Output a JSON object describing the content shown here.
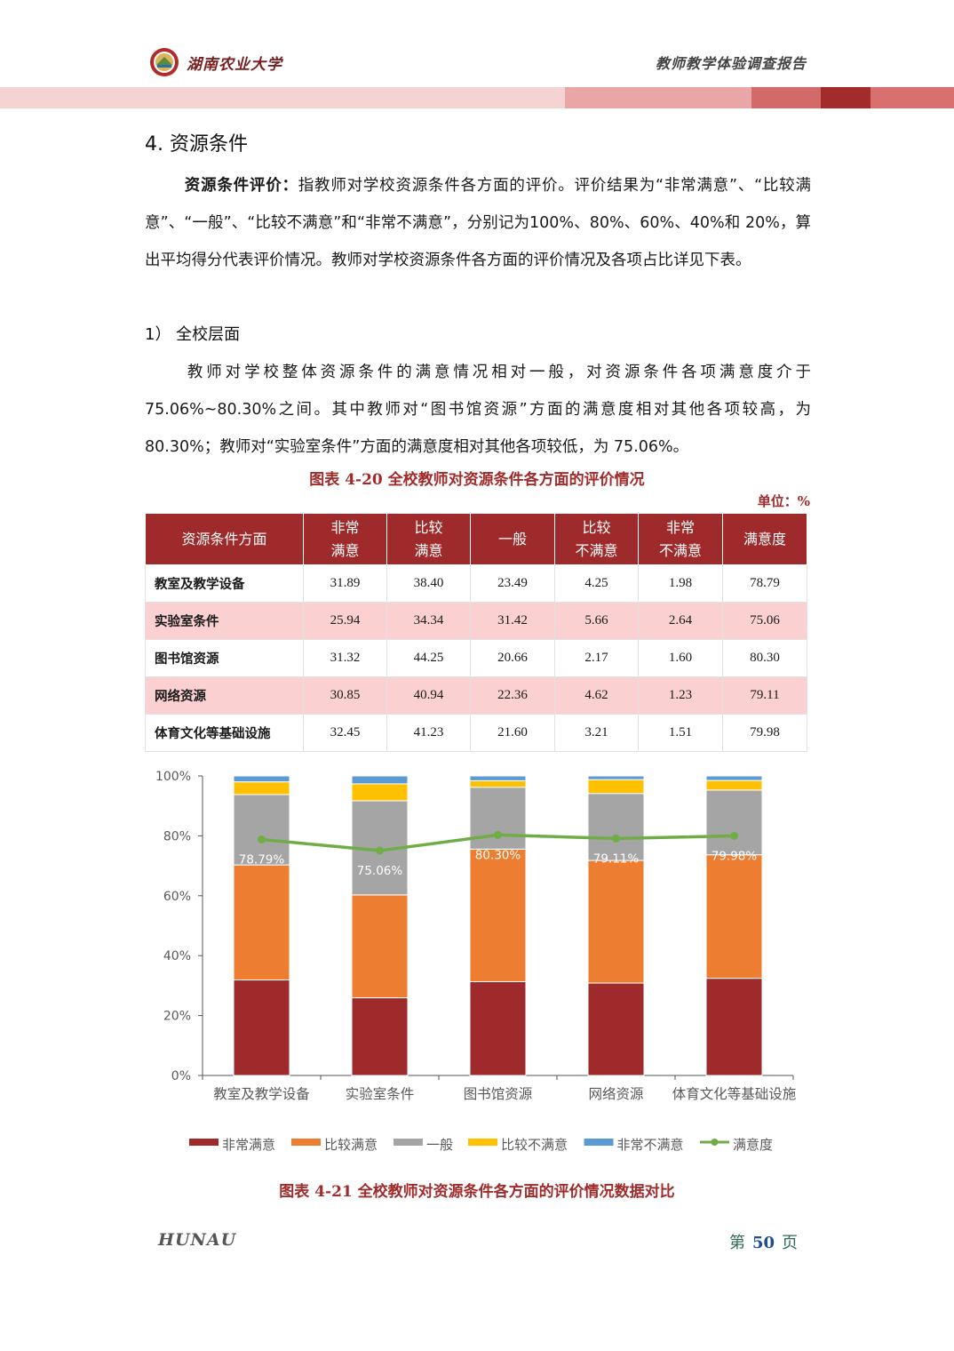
{
  "header": {
    "university": "湖南农业大学",
    "report_title": "教师教学体验调查报告"
  },
  "section": {
    "title": "4. 资源条件",
    "para1_bold": "资源条件评价：",
    "para1_text": "指教师对学校资源条件各方面的评价。评价结果为“非常满意”、“比较满意”、“一般”、“比较不满意”和“非常不满意”，分别记为100%、80%、60%、40%和 20%，算出平均得分代表评价情况。教师对学校资源条件各方面的评价情况及各项占比详见下表。",
    "subtitle": "1） 全校层面",
    "para2_text": "教师对学校整体资源条件的满意情况相对一般，对资源条件各项满意度介于75.06%~80.30%之间。其中教师对“图书馆资源”方面的满意度相对其他各项较高，为 80.30%；教师对“实验室条件”方面的满意度相对其他各项较低，为 75.06%。"
  },
  "table": {
    "caption": "图表  4-20  全校教师对资源条件各方面的评价情况",
    "unit": "单位：%",
    "headers": [
      "资源条件方面",
      "非常\n满意",
      "比较\n满意",
      "一般",
      "比较\n不满意",
      "非常\n不满意",
      "满意度"
    ],
    "rows": [
      [
        "教室及教学设备",
        "31.89",
        "38.40",
        "23.49",
        "4.25",
        "1.98",
        "78.79"
      ],
      [
        "实验室条件",
        "25.94",
        "34.34",
        "31.42",
        "5.66",
        "2.64",
        "75.06"
      ],
      [
        "图书馆资源",
        "31.32",
        "44.25",
        "20.66",
        "2.17",
        "1.60",
        "80.30"
      ],
      [
        "网络资源",
        "30.85",
        "40.94",
        "22.36",
        "4.62",
        "1.23",
        "79.11"
      ],
      [
        "体育文化等基础设施",
        "32.45",
        "41.23",
        "21.60",
        "3.21",
        "1.51",
        "79.98"
      ]
    ]
  },
  "chart_data": {
    "type": "bar",
    "stacked": true,
    "categories": [
      "教室及教学设备",
      "实验室条件",
      "图书馆资源",
      "网络资源",
      "体育文化等基础设施"
    ],
    "series": [
      {
        "name": "非常满意",
        "values": [
          31.89,
          25.94,
          31.32,
          30.85,
          32.45
        ],
        "color": "#9e2a2b"
      },
      {
        "name": "比较满意",
        "values": [
          38.4,
          34.34,
          44.25,
          40.94,
          41.23
        ],
        "color": "#ed7d31"
      },
      {
        "name": "一般",
        "values": [
          23.49,
          31.42,
          20.66,
          22.36,
          21.6
        ],
        "color": "#a5a5a5"
      },
      {
        "name": "比较不满意",
        "values": [
          4.25,
          5.66,
          2.17,
          4.62,
          3.21
        ],
        "color": "#ffc000"
      },
      {
        "name": "非常不满意",
        "values": [
          1.98,
          2.64,
          1.6,
          1.23,
          1.51
        ],
        "color": "#5b9bd5"
      }
    ],
    "line": {
      "name": "满意度",
      "values": [
        78.79,
        75.06,
        80.3,
        79.11,
        79.98
      ],
      "color": "#70ad47",
      "labels": [
        "78.79%",
        "75.06%",
        "80.30%",
        "79.11%",
        "79.98%"
      ]
    },
    "y_ticks": [
      "0%",
      "20%",
      "40%",
      "60%",
      "80%",
      "100%"
    ],
    "ylim": [
      0,
      100
    ],
    "legend_position": "bottom",
    "caption": "图表  4-21  全校教师对资源条件各方面的评价情况数据对比"
  },
  "footer": {
    "logo_text": "HUNAU",
    "page_prefix": "第",
    "page_number": "50",
    "page_suffix": "页"
  }
}
